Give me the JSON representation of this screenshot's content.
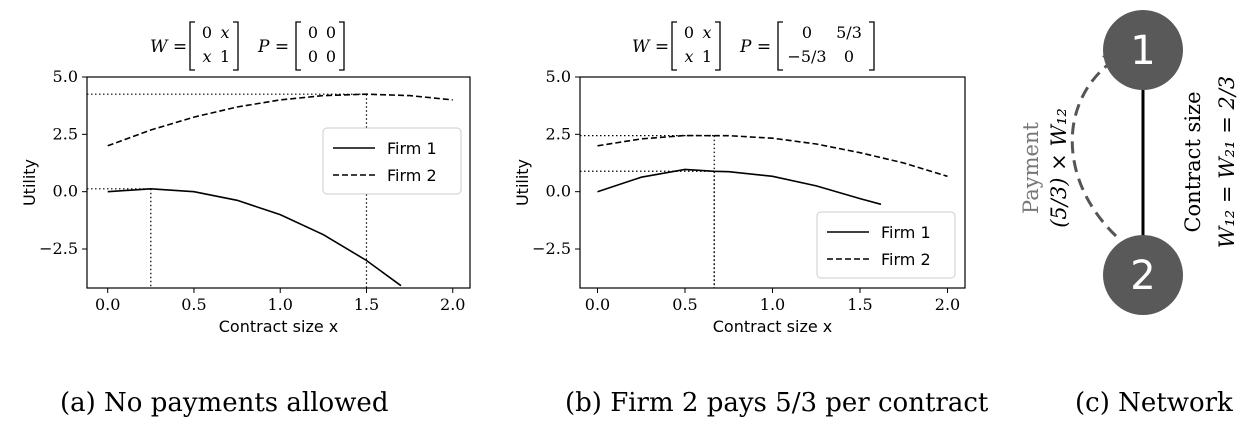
{
  "chart_data": [
    {
      "type": "line",
      "title_formula": {
        "w_lhs": "W =",
        "w_matrix": [
          [
            "0",
            "x"
          ],
          [
            "x",
            "1"
          ]
        ],
        "p_lhs": "P =",
        "p_matrix": [
          [
            "0",
            "0"
          ],
          [
            "0",
            "0"
          ]
        ]
      },
      "xlabel": "Contract size x",
      "ylabel": "Utility",
      "xlim": [
        -0.12,
        2.1
      ],
      "ylim": [
        -4.2,
        5.0
      ],
      "xticks": [
        "0.0",
        "0.5",
        "1.0",
        "1.5",
        "2.0"
      ],
      "yticks": [
        "5.0",
        "2.5",
        "0.0",
        "−2.5"
      ],
      "xtick_values": [
        0,
        0.5,
        1.0,
        1.5,
        2.0
      ],
      "ytick_values": [
        5.0,
        2.5,
        0.0,
        -2.5
      ],
      "legend_position": "center-right",
      "series": [
        {
          "name": "Firm 1",
          "style": "solid",
          "x": [
            0,
            0.25,
            0.5,
            0.75,
            1.0,
            1.25,
            1.5,
            1.7
          ],
          "y": [
            0.0,
            0.125,
            0.0,
            -0.375,
            -1.0,
            -1.875,
            -3.0,
            -4.1
          ]
        },
        {
          "name": "Firm 2",
          "style": "dashed",
          "x": [
            0,
            0.25,
            0.5,
            0.75,
            1.0,
            1.25,
            1.5,
            1.75,
            2.0
          ],
          "y": [
            2.0,
            2.69,
            3.25,
            3.69,
            4.0,
            4.19,
            4.25,
            4.19,
            4.0
          ]
        }
      ],
      "markers": [
        {
          "x": 0.25,
          "y": 0.125
        },
        {
          "x": 1.5,
          "y": 4.25
        }
      ]
    },
    {
      "type": "line",
      "title_formula": {
        "w_lhs": "W =",
        "w_matrix": [
          [
            "0",
            "x"
          ],
          [
            "x",
            "1"
          ]
        ],
        "p_lhs": "P =",
        "p_matrix": [
          [
            "0",
            "5/3"
          ],
          [
            "−5/3",
            "0"
          ]
        ]
      },
      "xlabel": "Contract size x",
      "ylabel": "Utility",
      "xlim": [
        -0.1,
        2.1
      ],
      "ylim": [
        -4.2,
        5.0
      ],
      "xticks": [
        "0.0",
        "0.5",
        "1.0",
        "1.5",
        "2.0"
      ],
      "yticks": [
        "5.0",
        "2.5",
        "0.0",
        "−2.5"
      ],
      "xtick_values": [
        0,
        0.5,
        1.0,
        1.5,
        2.0
      ],
      "ytick_values": [
        5.0,
        2.5,
        0.0,
        -2.5
      ],
      "legend_position": "lower-right",
      "series": [
        {
          "name": "Firm 1",
          "style": "solid",
          "x": [
            0,
            0.25,
            0.5,
            0.667,
            0.75,
            1.0,
            1.25,
            1.5,
            1.62
          ],
          "y": [
            0.0,
            0.63,
            0.97,
            0.89,
            0.87,
            0.67,
            0.25,
            -0.3,
            -0.55
          ]
        },
        {
          "name": "Firm 2",
          "style": "dashed",
          "x": [
            0,
            0.25,
            0.5,
            0.667,
            0.75,
            1.0,
            1.25,
            1.5,
            1.75,
            2.0
          ],
          "y": [
            2.0,
            2.3,
            2.45,
            2.44,
            2.44,
            2.33,
            2.08,
            1.7,
            1.25,
            0.67
          ]
        }
      ],
      "markers": [
        {
          "x": 0.667,
          "y": 0.889
        },
        {
          "x": 0.667,
          "y": 2.444
        }
      ]
    }
  ],
  "network": {
    "node_top": "1",
    "node_bottom": "2",
    "edge_label_line1": "Contract size",
    "edge_label_line2": "W₁₂ = W₂₁ = 2/3",
    "payment_label_line1": "Payment",
    "payment_label_line2": "(5/3) × W₁₂",
    "node_color": "#595959",
    "payment_color": "#555555"
  },
  "captions": {
    "a": "(a) No payments allowed",
    "b": "(b) Firm 2 pays 5/3 per contract",
    "c": "(c) Network"
  }
}
